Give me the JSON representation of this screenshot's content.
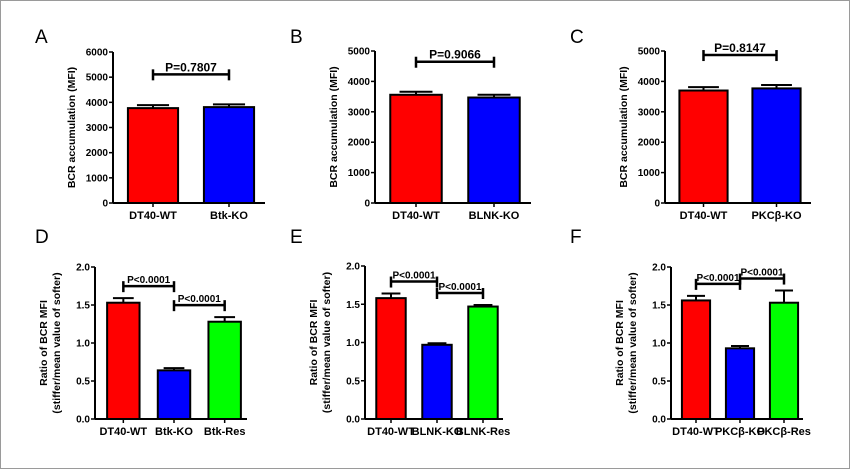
{
  "chart_data": [
    {
      "panel": "A",
      "type": "bar",
      "categories": [
        "DT40-WT",
        "Btk-KO"
      ],
      "values": [
        3770,
        3810
      ],
      "errors": [
        120,
        110
      ],
      "colors": [
        "#ff0000",
        "#0000ff"
      ],
      "ylabel": [
        "BCR accumulation (MFI)"
      ],
      "ylim": [
        0,
        6000
      ],
      "yticks": [
        "0",
        "1000",
        "2000",
        "3000",
        "4000",
        "5000",
        "6000"
      ],
      "comparisons": [
        {
          "from": 0,
          "to": 1,
          "label": "P=0.7807"
        }
      ]
    },
    {
      "panel": "B",
      "type": "bar",
      "categories": [
        "DT40-WT",
        "BLNK-KO"
      ],
      "values": [
        3560,
        3470
      ],
      "errors": [
        100,
        90
      ],
      "colors": [
        "#ff0000",
        "#0000ff"
      ],
      "ylabel": [
        "BCR accumulation (MFI)"
      ],
      "ylim": [
        0,
        5000
      ],
      "yticks": [
        "0",
        "1000",
        "2000",
        "3000",
        "4000",
        "5000"
      ],
      "comparisons": [
        {
          "from": 0,
          "to": 1,
          "label": "P=0.9066"
        }
      ]
    },
    {
      "panel": "C",
      "type": "bar",
      "categories": [
        "DT40-WT",
        "PKCβ-KO"
      ],
      "values": [
        3700,
        3770
      ],
      "errors": [
        110,
        110
      ],
      "colors": [
        "#ff0000",
        "#0000ff"
      ],
      "ylabel": [
        "BCR accumulation (MFI)"
      ],
      "ylim": [
        0,
        5000
      ],
      "yticks": [
        "0",
        "1000",
        "2000",
        "3000",
        "4000",
        "5000"
      ],
      "comparisons": [
        {
          "from": 0,
          "to": 1,
          "label": "P=0.8147"
        }
      ]
    },
    {
      "panel": "D",
      "type": "bar",
      "categories": [
        "DT40-WT",
        "Btk-KO",
        "Btk-Res"
      ],
      "values": [
        1.53,
        0.64,
        1.28
      ],
      "errors": [
        0.06,
        0.03,
        0.06
      ],
      "colors": [
        "#ff0000",
        "#0000ff",
        "#00ff00"
      ],
      "ylabel": [
        "Ratio of BCR MFI",
        "(stiffer/mean value of softer)"
      ],
      "ylim": [
        0,
        2.0
      ],
      "yticks": [
        "0.0",
        "0.5",
        "1.0",
        "1.5",
        "2.0"
      ],
      "comparisons": [
        {
          "from": 0,
          "to": 1,
          "label": "P<0.0001"
        },
        {
          "from": 1,
          "to": 2,
          "label": "P<0.0001"
        }
      ]
    },
    {
      "panel": "E",
      "type": "bar",
      "categories": [
        "DT40-WT",
        "BLNK-KO",
        "BLNK-Res"
      ],
      "values": [
        1.58,
        0.97,
        1.47
      ],
      "errors": [
        0.06,
        0.02,
        0.02
      ],
      "colors": [
        "#ff0000",
        "#0000ff",
        "#00ff00"
      ],
      "ylabel": [
        "Ratio of BCR MFI",
        "(stiffer/mean value of softer)"
      ],
      "ylim": [
        0,
        2.0
      ],
      "yticks": [
        "0.0",
        "0.5",
        "1.0",
        "1.5",
        "2.0"
      ],
      "comparisons": [
        {
          "from": 0,
          "to": 1,
          "label": "P<0.0001"
        },
        {
          "from": 1,
          "to": 2,
          "label": "P<0.0001"
        }
      ]
    },
    {
      "panel": "F",
      "type": "bar",
      "categories": [
        "DT40-WT",
        "PKCβ-KO",
        "PKCβ-Res"
      ],
      "values": [
        1.56,
        0.93,
        1.53
      ],
      "errors": [
        0.06,
        0.03,
        0.16
      ],
      "colors": [
        "#ff0000",
        "#0000ff",
        "#00ff00"
      ],
      "ylabel": [
        "Ratio of BCR MFI",
        "(stiffer/mean value of softer)"
      ],
      "ylim": [
        0,
        2.0
      ],
      "yticks": [
        "0.0",
        "0.5",
        "1.0",
        "1.5",
        "2.0"
      ],
      "comparisons": [
        {
          "from": 0,
          "to": 1,
          "label": "P<0.0001"
        },
        {
          "from": 1,
          "to": 2,
          "label": "P<0.0001"
        }
      ]
    }
  ]
}
